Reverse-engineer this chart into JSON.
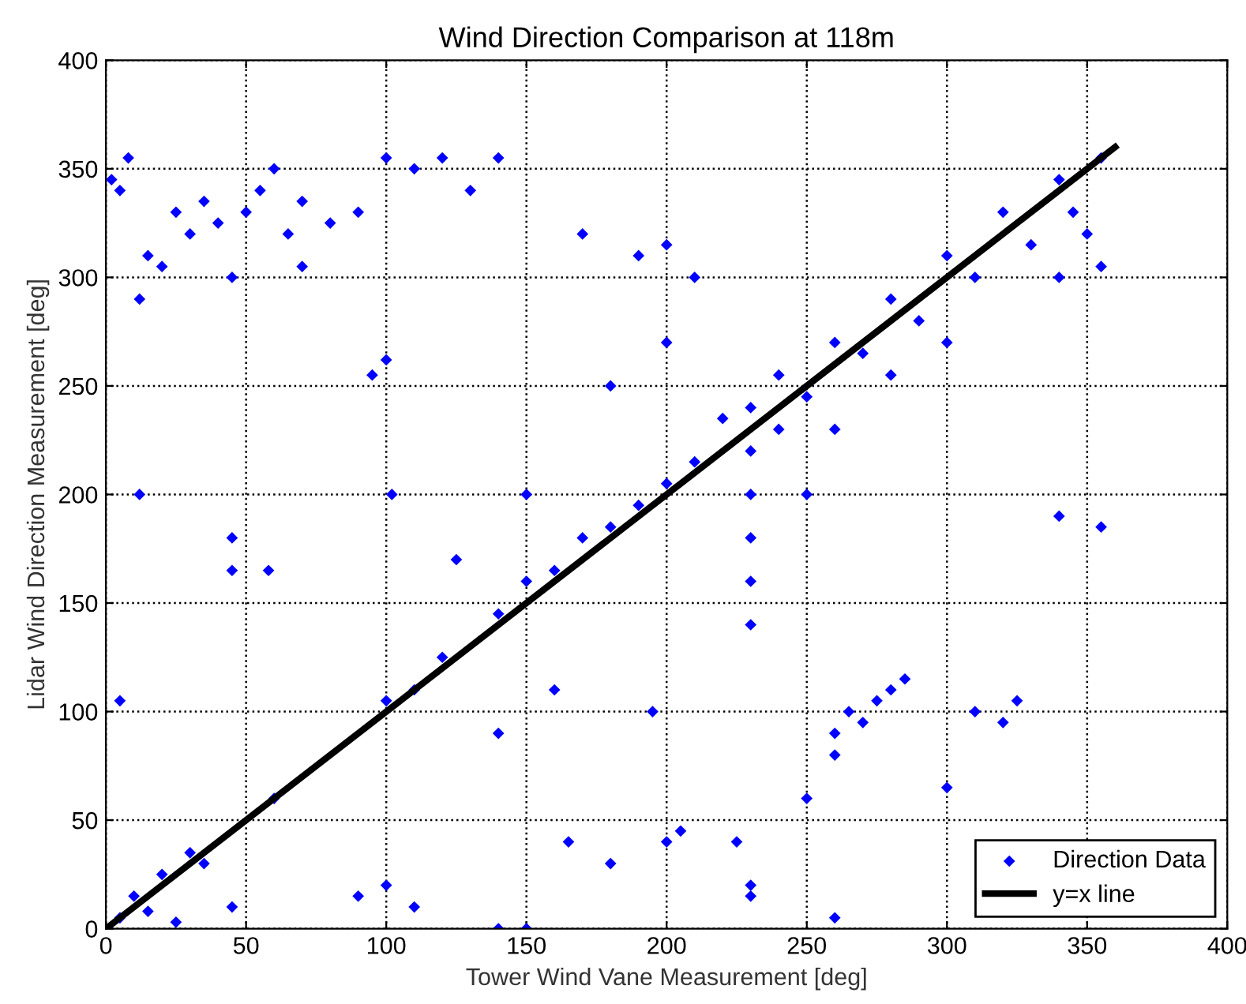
{
  "chart_data": {
    "type": "scatter",
    "title": "Wind Direction Comparison at 118m",
    "xlabel": "Tower Wind Vane Measurement [deg]",
    "ylabel": "Lidar Wind Direction Measurement [deg]",
    "xlim": [
      0,
      400
    ],
    "ylim": [
      0,
      400
    ],
    "xticks": [
      0,
      50,
      100,
      150,
      200,
      250,
      300,
      350,
      400
    ],
    "yticks": [
      0,
      50,
      100,
      150,
      200,
      250,
      300,
      350,
      400
    ],
    "grid": true,
    "legend": "bottom right",
    "series": [
      {
        "name": "Direction Data",
        "color": "#0000ff",
        "marker": "diamond",
        "x": [
          5,
          10,
          15,
          20,
          25,
          30,
          35,
          45,
          60,
          2,
          5,
          8,
          15,
          20,
          25,
          30,
          35,
          40,
          50,
          55,
          60,
          65,
          70,
          80,
          90,
          100,
          110,
          120,
          130,
          140,
          12,
          45,
          70,
          100,
          95,
          230,
          230,
          230,
          230,
          230,
          230,
          260,
          265,
          270,
          275,
          280,
          285,
          260,
          250,
          310,
          320,
          325,
          220,
          240,
          260,
          280,
          300,
          320,
          340,
          355,
          250,
          270,
          290,
          310,
          330,
          345,
          350,
          355,
          340,
          300,
          280,
          100,
          110,
          120,
          140,
          150,
          160,
          170,
          180,
          190,
          200,
          210,
          150,
          140,
          100,
          110,
          90,
          180,
          200,
          230,
          230,
          250,
          240,
          195,
          205,
          225,
          260,
          170,
          190,
          200,
          210,
          5,
          12,
          45,
          45,
          58,
          102,
          125,
          150,
          180,
          200,
          300,
          355,
          340,
          260,
          140,
          160,
          165
        ],
        "values": [
          5,
          15,
          8,
          25,
          3,
          35,
          30,
          10,
          60,
          345,
          340,
          355,
          310,
          305,
          330,
          320,
          335,
          325,
          330,
          340,
          350,
          320,
          335,
          325,
          330,
          355,
          350,
          355,
          340,
          355,
          290,
          300,
          305,
          262,
          255,
          140,
          160,
          180,
          200,
          220,
          240,
          90,
          100,
          95,
          105,
          110,
          115,
          80,
          60,
          100,
          95,
          105,
          235,
          255,
          270,
          290,
          310,
          330,
          345,
          355,
          245,
          265,
          280,
          300,
          315,
          330,
          320,
          305,
          300,
          270,
          255,
          105,
          110,
          125,
          145,
          160,
          165,
          180,
          185,
          195,
          205,
          215,
          0,
          0,
          20,
          10,
          15,
          30,
          40,
          20,
          15,
          200,
          230,
          100,
          45,
          40,
          5,
          320,
          310,
          315,
          300,
          105,
          200,
          180,
          165,
          165,
          200,
          170,
          200,
          250,
          270,
          65,
          185,
          190,
          230,
          90,
          110,
          40
        ]
      },
      {
        "name": "y=x line",
        "type": "line",
        "color": "#000000",
        "marker": "none",
        "line_style": "solid",
        "x": [
          0,
          360
        ],
        "values": [
          0,
          360
        ]
      }
    ]
  }
}
